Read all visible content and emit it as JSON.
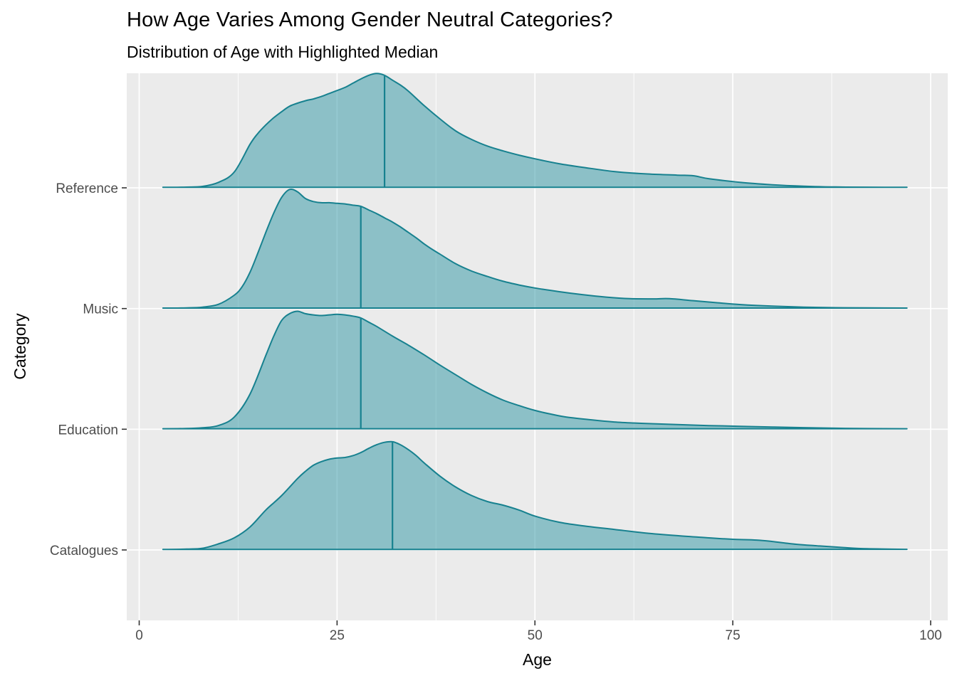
{
  "figure": {
    "title": "How Age Varies Among Gender Neutral Categories?",
    "subtitle": "Distribution of Age with Highlighted Median",
    "x_axis_label": "Age",
    "y_axis_label": "Category"
  },
  "colors": {
    "figure_background": "#FFFFFF",
    "panel_background": "#EBEBEB",
    "gridline": "#FFFFFF",
    "ridge_stroke": "#17818F",
    "ridge_fill": "#2E95A4",
    "ridge_fill_opacity": 0.5,
    "median_line": "#17818F",
    "tick_mark": "#333333",
    "tick_label": "#4D4D4D",
    "axis_title": "#000000"
  },
  "chart_data": {
    "type": "area",
    "subtype": "ridgeline_density",
    "title": "How Age Varies Among Gender Neutral Categories?",
    "subtitle": "Distribution of Age with Highlighted Median",
    "xlabel": "Age",
    "ylabel": "Category",
    "x_ticks": [
      0,
      25,
      50,
      75,
      100
    ],
    "x_minor_gridlines": [
      12.5,
      37.5,
      62.5,
      87.5
    ],
    "xlim": [
      -1.5,
      103.5
    ],
    "data_x_range": [
      3,
      97
    ],
    "grid": "on",
    "legend": "none",
    "height_units": "fraction of category row spacing (1.0 = distance between category baselines)",
    "categories_top_to_bottom": [
      "Reference",
      "Music",
      "Education",
      "Catalogues"
    ],
    "series": [
      {
        "name": "Reference",
        "median": 31,
        "points": [
          [
            3,
            0.004
          ],
          [
            6,
            0.006
          ],
          [
            8,
            0.012
          ],
          [
            10,
            0.045
          ],
          [
            12,
            0.13
          ],
          [
            14,
            0.36
          ],
          [
            15,
            0.45
          ],
          [
            16,
            0.52
          ],
          [
            17,
            0.58
          ],
          [
            18,
            0.63
          ],
          [
            19,
            0.675
          ],
          [
            20,
            0.7
          ],
          [
            21,
            0.72
          ],
          [
            22,
            0.735
          ],
          [
            23,
            0.755
          ],
          [
            24,
            0.78
          ],
          [
            25,
            0.805
          ],
          [
            26,
            0.83
          ],
          [
            27,
            0.865
          ],
          [
            28,
            0.9
          ],
          [
            29,
            0.93
          ],
          [
            30,
            0.945
          ],
          [
            31,
            0.93
          ],
          [
            32,
            0.89
          ],
          [
            33,
            0.85
          ],
          [
            34,
            0.8
          ],
          [
            36,
            0.68
          ],
          [
            38,
            0.57
          ],
          [
            40,
            0.47
          ],
          [
            42,
            0.4
          ],
          [
            44,
            0.345
          ],
          [
            46,
            0.305
          ],
          [
            48,
            0.27
          ],
          [
            50,
            0.24
          ],
          [
            53,
            0.2
          ],
          [
            56,
            0.17
          ],
          [
            60,
            0.135
          ],
          [
            64,
            0.115
          ],
          [
            68,
            0.105
          ],
          [
            70,
            0.1
          ],
          [
            72,
            0.075
          ],
          [
            76,
            0.045
          ],
          [
            80,
            0.025
          ],
          [
            84,
            0.013
          ],
          [
            88,
            0.007
          ],
          [
            92,
            0.005
          ],
          [
            97,
            0.004
          ]
        ]
      },
      {
        "name": "Music",
        "median": 28,
        "points": [
          [
            3,
            0.004
          ],
          [
            6,
            0.006
          ],
          [
            8,
            0.012
          ],
          [
            10,
            0.035
          ],
          [
            12,
            0.11
          ],
          [
            13,
            0.18
          ],
          [
            14,
            0.3
          ],
          [
            15,
            0.46
          ],
          [
            16,
            0.63
          ],
          [
            17,
            0.79
          ],
          [
            18,
            0.92
          ],
          [
            19,
            0.985
          ],
          [
            20,
            0.965
          ],
          [
            21,
            0.91
          ],
          [
            22,
            0.885
          ],
          [
            23,
            0.875
          ],
          [
            24,
            0.875
          ],
          [
            25,
            0.87
          ],
          [
            26,
            0.865
          ],
          [
            27,
            0.855
          ],
          [
            28,
            0.845
          ],
          [
            29,
            0.815
          ],
          [
            30,
            0.785
          ],
          [
            31,
            0.75
          ],
          [
            32,
            0.715
          ],
          [
            33,
            0.675
          ],
          [
            34,
            0.63
          ],
          [
            35,
            0.585
          ],
          [
            36,
            0.535
          ],
          [
            37,
            0.49
          ],
          [
            38,
            0.45
          ],
          [
            40,
            0.37
          ],
          [
            42,
            0.31
          ],
          [
            44,
            0.265
          ],
          [
            46,
            0.225
          ],
          [
            48,
            0.195
          ],
          [
            50,
            0.17
          ],
          [
            53,
            0.14
          ],
          [
            56,
            0.115
          ],
          [
            59,
            0.095
          ],
          [
            62,
            0.082
          ],
          [
            65,
            0.08
          ],
          [
            67,
            0.082
          ],
          [
            70,
            0.065
          ],
          [
            73,
            0.048
          ],
          [
            76,
            0.033
          ],
          [
            80,
            0.02
          ],
          [
            84,
            0.012
          ],
          [
            88,
            0.007
          ],
          [
            92,
            0.005
          ],
          [
            97,
            0.004
          ]
        ]
      },
      {
        "name": "Education",
        "median": 28,
        "points": [
          [
            3,
            0.004
          ],
          [
            6,
            0.006
          ],
          [
            8,
            0.012
          ],
          [
            10,
            0.03
          ],
          [
            12,
            0.1
          ],
          [
            14,
            0.29
          ],
          [
            16,
            0.61
          ],
          [
            17,
            0.77
          ],
          [
            18,
            0.9
          ],
          [
            19,
            0.955
          ],
          [
            20,
            0.975
          ],
          [
            21,
            0.955
          ],
          [
            22,
            0.945
          ],
          [
            23,
            0.94
          ],
          [
            24,
            0.945
          ],
          [
            25,
            0.95
          ],
          [
            26,
            0.945
          ],
          [
            27,
            0.935
          ],
          [
            28,
            0.92
          ],
          [
            29,
            0.885
          ],
          [
            30,
            0.85
          ],
          [
            32,
            0.77
          ],
          [
            34,
            0.695
          ],
          [
            36,
            0.615
          ],
          [
            38,
            0.53
          ],
          [
            40,
            0.45
          ],
          [
            42,
            0.37
          ],
          [
            44,
            0.3
          ],
          [
            46,
            0.24
          ],
          [
            48,
            0.195
          ],
          [
            50,
            0.155
          ],
          [
            52,
            0.125
          ],
          [
            54,
            0.1
          ],
          [
            57,
            0.078
          ],
          [
            60,
            0.06
          ],
          [
            64,
            0.047
          ],
          [
            68,
            0.038
          ],
          [
            72,
            0.03
          ],
          [
            76,
            0.024
          ],
          [
            80,
            0.018
          ],
          [
            84,
            0.013
          ],
          [
            88,
            0.008
          ],
          [
            92,
            0.005
          ],
          [
            97,
            0.004
          ]
        ]
      },
      {
        "name": "Catalogues",
        "median": 32,
        "points": [
          [
            3,
            0.004
          ],
          [
            6,
            0.007
          ],
          [
            8,
            0.014
          ],
          [
            10,
            0.05
          ],
          [
            12,
            0.1
          ],
          [
            14,
            0.19
          ],
          [
            16,
            0.33
          ],
          [
            18,
            0.45
          ],
          [
            20,
            0.59
          ],
          [
            21,
            0.65
          ],
          [
            22,
            0.7
          ],
          [
            23,
            0.73
          ],
          [
            24,
            0.75
          ],
          [
            25,
            0.76
          ],
          [
            26,
            0.765
          ],
          [
            27,
            0.78
          ],
          [
            28,
            0.805
          ],
          [
            29,
            0.84
          ],
          [
            30,
            0.87
          ],
          [
            31,
            0.89
          ],
          [
            32,
            0.895
          ],
          [
            33,
            0.87
          ],
          [
            34,
            0.83
          ],
          [
            35,
            0.78
          ],
          [
            36,
            0.72
          ],
          [
            38,
            0.61
          ],
          [
            40,
            0.52
          ],
          [
            42,
            0.45
          ],
          [
            44,
            0.4
          ],
          [
            46,
            0.37
          ],
          [
            48,
            0.33
          ],
          [
            50,
            0.28
          ],
          [
            53,
            0.23
          ],
          [
            56,
            0.2
          ],
          [
            60,
            0.17
          ],
          [
            64,
            0.14
          ],
          [
            68,
            0.118
          ],
          [
            72,
            0.1
          ],
          [
            75,
            0.088
          ],
          [
            78,
            0.082
          ],
          [
            80,
            0.07
          ],
          [
            83,
            0.047
          ],
          [
            86,
            0.033
          ],
          [
            89,
            0.02
          ],
          [
            92,
            0.01
          ],
          [
            97,
            0.005
          ]
        ]
      }
    ]
  }
}
